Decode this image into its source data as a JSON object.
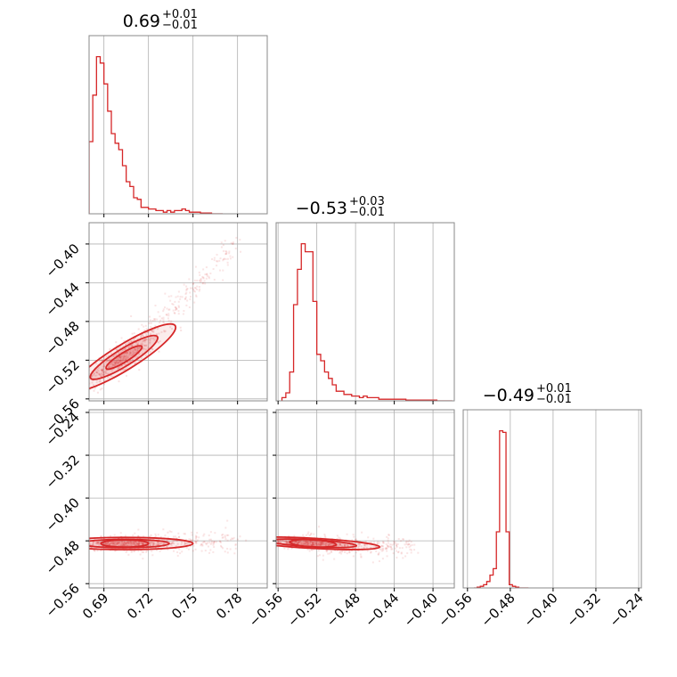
{
  "chart_data": {
    "type": "corner",
    "color": "#d62728",
    "grid": true,
    "parameters": [
      {
        "title_main": "0.69",
        "title_plus": "+0.01",
        "title_minus": "−0.01",
        "range": [
          0.68,
          0.8
        ]
      },
      {
        "title_main": "−0.53",
        "title_plus": "+0.03",
        "title_minus": "−0.01",
        "range": [
          -0.562,
          -0.378
        ]
      },
      {
        "title_main": "−0.49",
        "title_plus": "+0.01",
        "title_minus": "−0.01",
        "range": [
          -0.568,
          -0.235
        ]
      }
    ],
    "axis_ticks": [
      {
        "values": [
          0.69,
          0.72,
          0.75,
          0.78
        ],
        "labels": [
          "0.69",
          "0.72",
          "0.75",
          "0.78"
        ]
      },
      {
        "values": [
          -0.56,
          -0.52,
          -0.48,
          -0.44,
          -0.4
        ],
        "labels": [
          "−0.56",
          "−0.52",
          "−0.48",
          "−0.44",
          "−0.40"
        ]
      },
      {
        "values": [
          -0.56,
          -0.48,
          -0.4,
          -0.32,
          -0.24
        ],
        "labels": [
          "−0.56",
          "−0.48",
          "−0.40",
          "−0.32",
          "−0.24"
        ]
      }
    ],
    "histograms": [
      {
        "param": 0,
        "bin_edges": [
          0.68,
          0.6825,
          0.685,
          0.6875,
          0.69,
          0.6925,
          0.695,
          0.6975,
          0.7,
          0.7025,
          0.705,
          0.7075,
          0.71,
          0.7125,
          0.715,
          0.7175,
          0.72,
          0.7225,
          0.725,
          0.7275,
          0.73,
          0.7325,
          0.735,
          0.7375,
          0.74,
          0.7425,
          0.745,
          0.7475,
          0.75,
          0.7525,
          0.755,
          0.7575,
          0.76,
          0.7625,
          0.765,
          0.7675,
          0.77
        ],
        "counts": [
          0.45,
          0.74,
          0.98,
          0.94,
          0.81,
          0.64,
          0.5,
          0.44,
          0.4,
          0.3,
          0.2,
          0.17,
          0.1,
          0.09,
          0.04,
          0.04,
          0.03,
          0.03,
          0.02,
          0.02,
          0.01,
          0.02,
          0.01,
          0.02,
          0.02,
          0.03,
          0.02,
          0.01,
          0.01,
          0.01,
          0.005,
          0.005,
          0.005,
          0.0,
          0.0,
          0.0
        ]
      },
      {
        "param": 1,
        "bin_edges": [
          -0.556,
          -0.552,
          -0.548,
          -0.544,
          -0.54,
          -0.536,
          -0.532,
          -0.528,
          -0.524,
          -0.52,
          -0.516,
          -0.512,
          -0.508,
          -0.504,
          -0.5,
          -0.496,
          -0.492,
          -0.488,
          -0.484,
          -0.48,
          -0.476,
          -0.472,
          -0.468,
          -0.464,
          -0.46,
          -0.456,
          -0.452,
          -0.448,
          -0.444,
          -0.44,
          -0.436,
          -0.432,
          -0.428,
          -0.424,
          -0.42,
          -0.416,
          -0.412,
          -0.408,
          -0.404,
          -0.4,
          -0.396,
          -0.392,
          -0.388,
          -0.384,
          -0.38
        ],
        "counts": [
          0.02,
          0.05,
          0.18,
          0.6,
          0.82,
          0.98,
          0.93,
          0.93,
          0.62,
          0.29,
          0.25,
          0.18,
          0.14,
          0.1,
          0.06,
          0.06,
          0.04,
          0.04,
          0.03,
          0.03,
          0.02,
          0.03,
          0.02,
          0.02,
          0.02,
          0.01,
          0.01,
          0.01,
          0.01,
          0.01,
          0.01,
          0.01,
          0.005,
          0.005,
          0.005,
          0.005,
          0.005,
          0.005,
          0.005,
          0.005,
          0.0,
          0.0,
          0.0,
          0.0
        ]
      },
      {
        "param": 2,
        "bin_edges": [
          -0.548,
          -0.542,
          -0.536,
          -0.53,
          -0.524,
          -0.518,
          -0.512,
          -0.506,
          -0.5,
          -0.494,
          -0.488,
          -0.482,
          -0.476,
          -0.47,
          -0.464,
          -0.458,
          -0.452,
          -0.446
        ],
        "counts": [
          0.0,
          0.005,
          0.01,
          0.02,
          0.04,
          0.08,
          0.12,
          0.35,
          0.98,
          0.97,
          0.35,
          0.02,
          0.01,
          0.005,
          0.0,
          0.0,
          0.0
        ]
      }
    ],
    "scatter_panels": [
      {
        "x_param": 0,
        "y_param": 1,
        "center": [
          0.7,
          -0.52
        ],
        "slope": 0.95,
        "sigma_main": 0.015,
        "sigma_perp": 0.008,
        "tail_to": [
          0.78,
          -0.4
        ]
      },
      {
        "x_param": 0,
        "y_param": 2,
        "center": [
          0.7,
          -0.485
        ],
        "slope": 0.0,
        "sigma_main": 0.02,
        "sigma_perp": 0.006,
        "tail_to": [
          0.78,
          -0.48
        ]
      },
      {
        "x_param": 1,
        "y_param": 2,
        "center": [
          -0.53,
          -0.484
        ],
        "slope": -0.1,
        "sigma_main": 0.03,
        "sigma_perp": 0.005,
        "tail_to": [
          -0.42,
          -0.495
        ]
      }
    ]
  }
}
